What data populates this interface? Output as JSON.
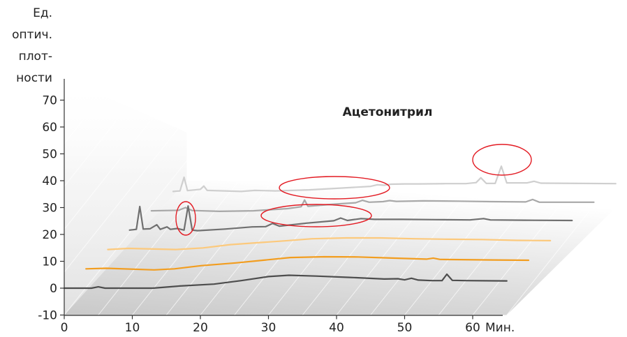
{
  "chart_data": {
    "type": "line",
    "title": "Ацетонитрил",
    "ylabel": [
      "Ед.",
      "оптич.",
      "плот-",
      "ности"
    ],
    "xlabel": "Мин.",
    "x_ticks": [
      0,
      10,
      20,
      30,
      40,
      50,
      60
    ],
    "y_ticks": [
      -10,
      0,
      10,
      20,
      30,
      40,
      50,
      60,
      70
    ],
    "xlim": [
      0,
      65
    ],
    "ylim": [
      -10,
      80
    ],
    "layout": "waterfall-3d",
    "series": [
      {
        "color": "#4d4d4d",
        "offset": [
          0,
          0
        ],
        "points": [
          [
            0,
            0
          ],
          [
            4,
            0
          ],
          [
            5,
            0.5
          ],
          [
            6,
            0
          ],
          [
            13,
            0
          ],
          [
            17,
            0.8
          ],
          [
            22,
            1.5
          ],
          [
            26,
            2.8
          ],
          [
            30,
            4.3
          ],
          [
            33,
            4.8
          ],
          [
            37,
            4.5
          ],
          [
            42,
            4.0
          ],
          [
            47,
            3.4
          ],
          [
            49,
            3.5
          ],
          [
            50,
            3.1
          ],
          [
            51,
            3.7
          ],
          [
            52,
            3.0
          ],
          [
            54,
            2.8
          ],
          [
            55.5,
            2.8
          ],
          [
            56.2,
            5.2
          ],
          [
            57,
            2.9
          ],
          [
            59,
            2.8
          ],
          [
            65,
            2.7
          ]
        ]
      },
      {
        "color": "#f29d1f",
        "offset": [
          3.2,
          7.2
        ],
        "points": [
          [
            0,
            0
          ],
          [
            3,
            0.2
          ],
          [
            10,
            -0.4
          ],
          [
            13,
            0
          ],
          [
            17,
            1.2
          ],
          [
            22,
            2.2
          ],
          [
            26,
            3.2
          ],
          [
            30,
            4.2
          ],
          [
            35,
            4.5
          ],
          [
            40,
            4.4
          ],
          [
            45,
            4.0
          ],
          [
            50,
            3.6
          ],
          [
            51,
            4.0
          ],
          [
            52,
            3.5
          ],
          [
            60,
            3.3
          ],
          [
            65,
            3.2
          ]
        ]
      },
      {
        "color": "#fcc97c",
        "offset": [
          6.4,
          14.4
        ],
        "points": [
          [
            0,
            0
          ],
          [
            3,
            0.4
          ],
          [
            10,
            0
          ],
          [
            14,
            0.6
          ],
          [
            18,
            1.8
          ],
          [
            22,
            2.5
          ],
          [
            26,
            3.2
          ],
          [
            30,
            4.0
          ],
          [
            35,
            4.3
          ],
          [
            40,
            4.3
          ],
          [
            45,
            4.0
          ],
          [
            50,
            3.8
          ],
          [
            55,
            3.7
          ],
          [
            60,
            3.4
          ],
          [
            65,
            3.3
          ]
        ]
      },
      {
        "color": "#707070",
        "offset": [
          9.6,
          21.6
        ],
        "points": [
          [
            0,
            0
          ],
          [
            1,
            0.3
          ],
          [
            1.5,
            8.8
          ],
          [
            2,
            0.4
          ],
          [
            3,
            0.5
          ],
          [
            4,
            2.0
          ],
          [
            4.5,
            0.3
          ],
          [
            5.5,
            1.2
          ],
          [
            6,
            0.3
          ],
          [
            7,
            0.6
          ],
          [
            8,
            0
          ],
          [
            8.6,
            9.0
          ],
          [
            9.2,
            0
          ],
          [
            10,
            -0.2
          ],
          [
            14,
            0.4
          ],
          [
            18,
            1.2
          ],
          [
            20,
            1.3
          ],
          [
            21,
            2.5
          ],
          [
            22,
            1.5
          ],
          [
            26,
            2.6
          ],
          [
            30,
            3.5
          ],
          [
            31,
            4.5
          ],
          [
            32,
            3.6
          ],
          [
            34,
            4.3
          ],
          [
            36,
            4.0
          ],
          [
            40,
            4.0
          ],
          [
            45,
            3.9
          ],
          [
            50,
            3.8
          ],
          [
            52,
            4.3
          ],
          [
            53,
            3.8
          ],
          [
            58,
            3.7
          ],
          [
            65,
            3.6
          ]
        ]
      },
      {
        "color": "#a8a8a8",
        "offset": [
          12.8,
          28.8
        ],
        "points": [
          [
            0,
            0
          ],
          [
            4,
            0.2
          ],
          [
            5,
            1.2
          ],
          [
            6,
            0.1
          ],
          [
            10,
            -0.2
          ],
          [
            15,
            0
          ],
          [
            20,
            0.8
          ],
          [
            22,
            1.5
          ],
          [
            22.5,
            4.0
          ],
          [
            23,
            1.7
          ],
          [
            27,
            2.5
          ],
          [
            30,
            3.0
          ],
          [
            31,
            3.9
          ],
          [
            32,
            3.2
          ],
          [
            34,
            3.4
          ],
          [
            35,
            3.8
          ],
          [
            36,
            3.5
          ],
          [
            40,
            3.7
          ],
          [
            45,
            3.6
          ],
          [
            50,
            3.4
          ],
          [
            55,
            3.3
          ],
          [
            56,
            4.2
          ],
          [
            57,
            3.2
          ],
          [
            65,
            3.2
          ]
        ]
      },
      {
        "color": "#cfcfcf",
        "offset": [
          16,
          36
        ],
        "points": [
          [
            0,
            0
          ],
          [
            1,
            0.2
          ],
          [
            1.6,
            5.3
          ],
          [
            2.1,
            0.3
          ],
          [
            4,
            0.8
          ],
          [
            4.5,
            2.0
          ],
          [
            5,
            0.4
          ],
          [
            10,
            0
          ],
          [
            12,
            0.4
          ],
          [
            15,
            0.2
          ],
          [
            20,
            0.6
          ],
          [
            25,
            1.3
          ],
          [
            29,
            1.9
          ],
          [
            30,
            2.5
          ],
          [
            31,
            2.3
          ],
          [
            32,
            2.7
          ],
          [
            34,
            2.8
          ],
          [
            36,
            2.8
          ],
          [
            40,
            2.9
          ],
          [
            43,
            2.9
          ],
          [
            44.5,
            3.3
          ],
          [
            45.2,
            5.1
          ],
          [
            46,
            3.0
          ],
          [
            47.3,
            3.0
          ],
          [
            48.2,
            9.4
          ],
          [
            49,
            3.2
          ],
          [
            52,
            3.2
          ],
          [
            53,
            3.8
          ],
          [
            54,
            3.1
          ],
          [
            60,
            3.0
          ],
          [
            65,
            2.9
          ]
        ]
      }
    ]
  }
}
